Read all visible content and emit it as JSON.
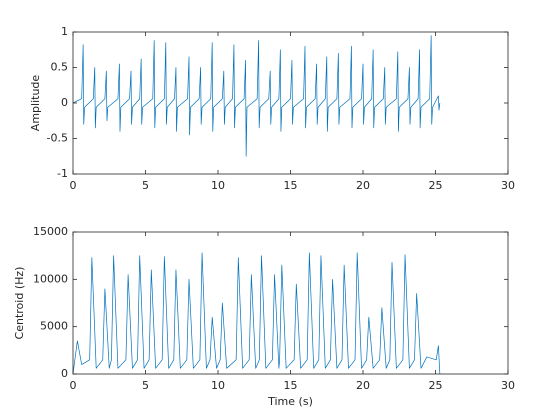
{
  "chart_data": [
    {
      "type": "line",
      "ylabel": "Amplitude",
      "color": "#0072bd",
      "xlim": [
        0,
        30
      ],
      "xticks": [
        0,
        5,
        10,
        15,
        20,
        25,
        30
      ],
      "ylim": [
        -1,
        1
      ],
      "yticks": [
        -1,
        -0.5,
        0,
        0.5,
        1
      ],
      "x": [
        0,
        0.6,
        0.7,
        0.74,
        0.8,
        1.4,
        1.5,
        1.54,
        1.6,
        2.2,
        2.3,
        2.34,
        2.4,
        3.1,
        3.2,
        3.24,
        3.3,
        3.9,
        4,
        4.04,
        4.1,
        4.6,
        4.7,
        4.74,
        4.8,
        5.5,
        5.6,
        5.64,
        5.7,
        6.3,
        6.4,
        6.44,
        6.5,
        7,
        7.1,
        7.14,
        7.2,
        7.9,
        8,
        8.04,
        8.1,
        8.7,
        8.8,
        8.84,
        8.9,
        9.5,
        9.6,
        9.64,
        9.7,
        10.3,
        10.4,
        10.44,
        10.5,
        11,
        11.1,
        11.14,
        11.2,
        11.8,
        11.9,
        11.94,
        12,
        12.7,
        12.8,
        12.84,
        12.9,
        13.5,
        13.6,
        13.64,
        13.7,
        14.2,
        14.3,
        14.34,
        14.4,
        15,
        15.1,
        15.14,
        15.2,
        15.9,
        16,
        16.04,
        16.1,
        16.7,
        16.8,
        16.84,
        16.9,
        17.4,
        17.5,
        17.54,
        17.6,
        18.2,
        18.3,
        18.34,
        18.4,
        19.1,
        19.2,
        19.24,
        19.3,
        19.9,
        20,
        20.04,
        20.1,
        20.6,
        20.7,
        20.74,
        20.8,
        21.4,
        21.5,
        21.54,
        21.6,
        22.3,
        22.4,
        22.44,
        22.5,
        23.1,
        23.2,
        23.24,
        23.3,
        23.8,
        23.9,
        23.94,
        24,
        24.6,
        24.7,
        24.74,
        24.8,
        25.1,
        25.2,
        25.24,
        25.3
      ],
      "values": [
        0,
        0.06,
        0.82,
        -0.3,
        -0.06,
        0.06,
        0.5,
        -0.35,
        -0.06,
        0.06,
        0.45,
        -0.25,
        -0.06,
        0.06,
        0.55,
        -0.4,
        -0.06,
        0.06,
        0.45,
        -0.3,
        -0.06,
        0.06,
        0.62,
        -0.3,
        -0.06,
        0.06,
        0.88,
        -0.35,
        -0.06,
        0.06,
        0.85,
        -0.3,
        -0.06,
        0.06,
        0.5,
        -0.4,
        -0.06,
        0.06,
        0.65,
        -0.45,
        -0.06,
        0.06,
        0.5,
        -0.3,
        -0.06,
        0.06,
        0.85,
        -0.4,
        -0.06,
        0.06,
        0.45,
        -0.3,
        -0.06,
        0.06,
        0.82,
        -0.35,
        -0.06,
        0.06,
        0.6,
        -0.75,
        -0.06,
        0.06,
        0.88,
        -0.35,
        -0.06,
        0.06,
        0.45,
        -0.3,
        -0.06,
        0.06,
        0.75,
        -0.4,
        -0.06,
        0.06,
        0.6,
        -0.3,
        -0.06,
        0.06,
        0.8,
        -0.35,
        -0.06,
        0.06,
        0.55,
        -0.3,
        -0.06,
        0.06,
        0.65,
        -0.4,
        -0.06,
        0.06,
        0.7,
        -0.3,
        -0.06,
        0.06,
        0.8,
        -0.35,
        -0.06,
        0.06,
        0.55,
        -0.3,
        -0.06,
        0.06,
        0.75,
        -0.35,
        -0.06,
        0.06,
        0.5,
        -0.3,
        -0.06,
        0.06,
        0.72,
        -0.4,
        -0.06,
        0.06,
        0.5,
        -0.3,
        -0.06,
        0.06,
        0.75,
        -0.35,
        -0.06,
        0.06,
        0.95,
        -0.3,
        -0.06,
        0.06,
        0.1,
        -0.1,
        0
      ]
    },
    {
      "type": "line",
      "ylabel": "Centroid (Hz)",
      "xlabel": "Time (s)",
      "color": "#0072bd",
      "xlim": [
        0,
        30
      ],
      "xticks": [
        0,
        5,
        10,
        15,
        20,
        25,
        30
      ],
      "ylim": [
        0,
        15000
      ],
      "yticks": [
        0,
        5000,
        10000,
        15000
      ],
      "x": [
        0,
        0.3,
        0.6,
        1.15,
        1.3,
        1.6,
        2.05,
        2.2,
        2.5,
        2.65,
        2.8,
        3.1,
        3.65,
        3.8,
        4.1,
        4.45,
        4.6,
        4.9,
        5.25,
        5.4,
        5.7,
        6.15,
        6.3,
        6.6,
        6.95,
        7.1,
        7.4,
        7.85,
        8,
        8.3,
        8.75,
        8.9,
        9.2,
        9.45,
        9.6,
        9.9,
        10.15,
        10.3,
        10.6,
        11.25,
        11.4,
        11.7,
        12.15,
        12.3,
        12.6,
        12.85,
        13,
        13.3,
        13.75,
        13.9,
        14.2,
        14.25,
        14.4,
        14.7,
        15.25,
        15.4,
        15.7,
        16.15,
        16.3,
        16.6,
        16.95,
        17.1,
        17.4,
        17.75,
        17.9,
        18.2,
        18.55,
        18.7,
        19,
        19.45,
        19.6,
        19.9,
        20.25,
        20.4,
        20.7,
        21.15,
        21.3,
        21.6,
        21.85,
        22,
        22.3,
        22.75,
        22.9,
        23.2,
        23.55,
        23.7,
        24,
        24.4,
        25.05,
        25.2,
        25.3
      ],
      "values": [
        0,
        3500,
        1000,
        1500,
        12300,
        600,
        1500,
        9000,
        600,
        1500,
        12500,
        600,
        1500,
        10500,
        600,
        1500,
        12500,
        600,
        1500,
        11000,
        600,
        1500,
        12400,
        600,
        1500,
        11000,
        600,
        1500,
        10000,
        600,
        1500,
        12800,
        600,
        1500,
        6000,
        600,
        1500,
        7500,
        600,
        1500,
        12300,
        600,
        1500,
        10500,
        600,
        1500,
        12500,
        600,
        1500,
        10500,
        600,
        1500,
        11500,
        600,
        1500,
        9500,
        600,
        1500,
        12800,
        600,
        1500,
        12500,
        600,
        1500,
        10000,
        600,
        1500,
        11500,
        600,
        1500,
        12800,
        600,
        1500,
        6000,
        600,
        1500,
        7000,
        600,
        1500,
        11800,
        600,
        1500,
        12600,
        600,
        1500,
        8500,
        600,
        1800,
        1500,
        3000,
        0
      ]
    }
  ]
}
